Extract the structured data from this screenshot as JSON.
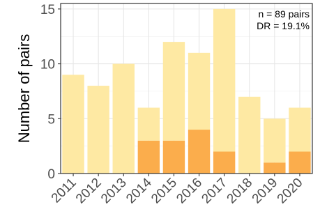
{
  "chart_data": {
    "type": "bar",
    "stacked": true,
    "categories": [
      "2011",
      "2012",
      "2013",
      "2014",
      "2015",
      "2016",
      "2017",
      "2018",
      "2019",
      "2020"
    ],
    "totals": [
      9,
      8,
      10,
      6,
      12,
      11,
      15,
      7,
      5,
      6
    ],
    "series": [
      {
        "color": "#fbad4c",
        "values": [
          0,
          0,
          0,
          3,
          3,
          4,
          2,
          0,
          1,
          2
        ]
      },
      {
        "color": "#fee9a3",
        "values": [
          9,
          8,
          10,
          3,
          9,
          7,
          13,
          7,
          4,
          4
        ]
      }
    ],
    "ylabel": "Number of pairs",
    "xlabel": "",
    "title": "",
    "ylim": [
      0,
      15.5
    ],
    "yticks": [
      0,
      5,
      10,
      15
    ],
    "grid": true,
    "annotations": [
      "n = 89 pairs",
      "DR = 19.1%"
    ]
  }
}
